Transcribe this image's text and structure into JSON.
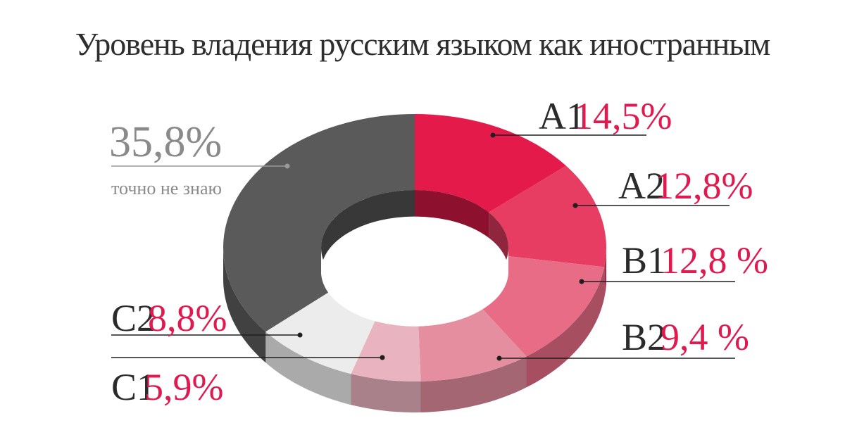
{
  "chart_data": {
    "type": "pie",
    "title": "Уровень владения русским языком как иностранным",
    "slices": [
      {
        "level": "A1",
        "label": "14,5%",
        "value": 14.5,
        "color": "#e41a4b"
      },
      {
        "level": "A2",
        "label": "12,8%",
        "value": 12.8,
        "color": "#e83d63"
      },
      {
        "level": "B1",
        "label": "12,8 %",
        "value": 12.8,
        "color": "#e96c87"
      },
      {
        "level": "B2",
        "label": "9,4 %",
        "value": 9.4,
        "color": "#e48ea0"
      },
      {
        "level": "C1",
        "label": "5,9%",
        "value": 5.9,
        "color": "#e9b3bf"
      },
      {
        "level": "C2",
        "label": "8,8%",
        "value": 8.8,
        "color": "#ececec"
      },
      {
        "level": "",
        "label": "35,8%",
        "note": "точно не знаю",
        "value": 35.8,
        "color": "#5a5a5a"
      }
    ]
  }
}
